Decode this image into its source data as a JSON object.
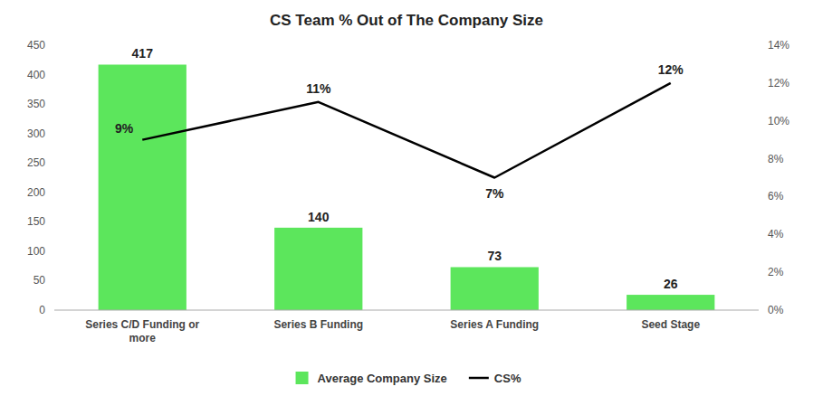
{
  "chart_data": {
    "type": "bar",
    "title": "CS Team % Out of The Company Size",
    "categories": [
      "Series C/D Funding or\nmore",
      "Series B Funding",
      "Series A Funding",
      "Seed Stage"
    ],
    "series": [
      {
        "name": "Average Company Size",
        "type": "bar",
        "color": "#5ce65c",
        "values": [
          417,
          140,
          73,
          26
        ]
      },
      {
        "name": "CS%",
        "type": "line",
        "color": "#000000",
        "axis": "y2",
        "values": [
          9,
          11,
          7,
          12
        ],
        "value_labels": [
          "9%",
          "11%",
          "7%",
          "12%"
        ]
      }
    ],
    "ylim": [
      0,
      450
    ],
    "yticks": [
      0,
      50,
      100,
      150,
      200,
      250,
      300,
      350,
      400,
      450
    ],
    "y2lim": [
      0,
      14
    ],
    "y2ticks": [
      {
        "value": 0,
        "label": "0%"
      },
      {
        "value": 2,
        "label": "2%"
      },
      {
        "value": 4,
        "label": "4%"
      },
      {
        "value": 6,
        "label": "6%"
      },
      {
        "value": 8,
        "label": "8%"
      },
      {
        "value": 10,
        "label": "10%"
      },
      {
        "value": 12,
        "label": "12%"
      },
      {
        "value": 14,
        "label": "14%"
      }
    ],
    "grid": false,
    "legend": "bottom",
    "data_labels": true
  }
}
